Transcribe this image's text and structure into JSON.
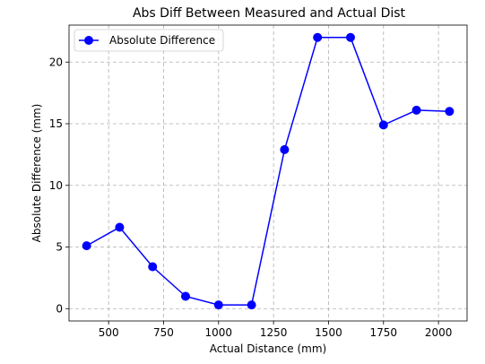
{
  "chart_data": {
    "type": "line",
    "title": "Abs Diff Between Measured and Actual Dist",
    "xlabel": "Actual Distance (mm)",
    "ylabel": "Absolute Difference (mm)",
    "xlim": [
      320,
      2130
    ],
    "ylim": [
      -1.0,
      23.0
    ],
    "xticks": [
      500,
      750,
      1000,
      1250,
      1500,
      1750,
      2000
    ],
    "yticks": [
      0,
      5,
      10,
      15,
      20
    ],
    "grid": true,
    "legend_position": "top-left",
    "series": [
      {
        "name": "Absolute Difference",
        "color": "#0000ff",
        "marker": "circle",
        "x": [
          400,
          550,
          700,
          850,
          1000,
          1150,
          1300,
          1450,
          1600,
          1750,
          1900,
          2050
        ],
        "y": [
          5.1,
          6.6,
          3.4,
          1.0,
          0.3,
          0.3,
          12.9,
          22.0,
          22.0,
          14.9,
          16.1,
          16.0
        ]
      }
    ]
  }
}
